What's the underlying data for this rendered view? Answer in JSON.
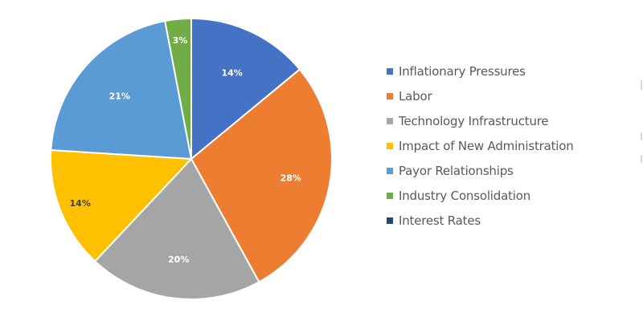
{
  "chart_data": {
    "type": "pie",
    "title": "",
    "start_angle_deg": 0,
    "direction": "clockwise",
    "legend_position": "right",
    "categories": [
      "Inflationary Pressures",
      "Labor",
      "Technology Infrastructure",
      "Impact of New Administration",
      "Payor Relationships",
      "Industry Consolidation",
      "Interest Rates"
    ],
    "values": [
      14,
      28,
      20,
      14,
      21,
      3,
      0
    ],
    "data_labels": [
      "14%",
      "28%",
      "20%",
      "14%",
      "21%",
      "3%",
      ""
    ],
    "colors": [
      "#4472C4",
      "#ED7D31",
      "#A5A5A5",
      "#FFC000",
      "#5B9BD5",
      "#70AD47",
      "#264478"
    ],
    "label_colors": [
      "#FFFFFF",
      "#FFFFFF",
      "#FFFFFF",
      "#404040",
      "#FFFFFF",
      "#FFFFFF",
      "#FFFFFF"
    ],
    "unit": "%"
  },
  "legend": {
    "items": [
      {
        "label": "Inflationary Pressures",
        "color": "#4472C4"
      },
      {
        "label": "Labor",
        "color": "#ED7D31"
      },
      {
        "label": "Technology Infrastructure",
        "color": "#A5A5A5"
      },
      {
        "label": "Impact of New Administration",
        "color": "#FFC000"
      },
      {
        "label": "Payor Relationships",
        "color": "#5B9BD5"
      },
      {
        "label": "Industry Consolidation",
        "color": "#70AD47"
      },
      {
        "label": "Interest Rates",
        "color": "#264478"
      }
    ]
  }
}
